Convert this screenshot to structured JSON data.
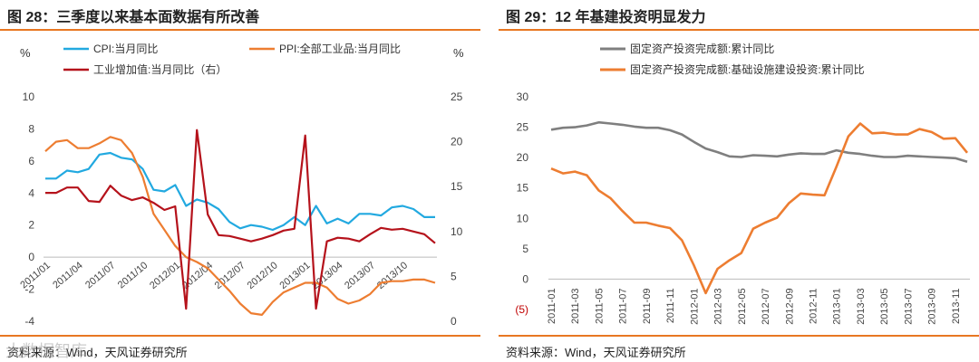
{
  "left": {
    "title": "图 28：三季度以来基本面数据有所改善",
    "source": "资料来源：Wind，天风证券研究所",
    "watermark": "大数据智库",
    "chart_data": {
      "type": "line",
      "left_axis_unit": "%",
      "right_axis_unit": "%",
      "left_ylim": [
        -4,
        10
      ],
      "right_ylim": [
        0,
        25
      ],
      "left_ticks": [
        "10",
        "8",
        "6",
        "4",
        "2",
        "0",
        "-2",
        "-4"
      ],
      "right_ticks": [
        "25",
        "20",
        "15",
        "10",
        "5",
        "0"
      ],
      "x_labels": [
        "2011/01",
        "2011/04",
        "2011/07",
        "2011/10",
        "2012/01",
        "2012/04",
        "2012/07",
        "2012/10",
        "2013/01",
        "2013/04",
        "2013/07",
        "2013/10"
      ],
      "series": [
        {
          "name": "CPI:当月同比",
          "axis": "left",
          "color": "#22a9e0",
          "values": [
            4.9,
            4.9,
            5.4,
            5.3,
            5.5,
            6.4,
            6.5,
            6.2,
            6.1,
            5.5,
            4.2,
            4.1,
            4.5,
            3.2,
            3.6,
            3.4,
            3.0,
            2.2,
            1.8,
            2.0,
            1.9,
            1.7,
            2.0,
            2.5,
            2.0,
            3.2,
            2.1,
            2.4,
            2.1,
            2.7,
            2.7,
            2.6,
            3.1,
            3.2,
            3.0,
            2.5,
            2.5
          ]
        },
        {
          "name": "PPI:全部工业品:当月同比",
          "axis": "left",
          "color": "#ed7d31",
          "values": [
            6.6,
            7.2,
            7.3,
            6.8,
            6.8,
            7.1,
            7.5,
            7.3,
            6.5,
            5.0,
            2.7,
            1.7,
            0.7,
            0.0,
            -0.3,
            -0.7,
            -1.4,
            -2.1,
            -2.9,
            -3.5,
            -3.6,
            -2.8,
            -2.2,
            -1.9,
            -1.6,
            -1.6,
            -1.9,
            -2.6,
            -2.9,
            -2.7,
            -2.3,
            -1.6,
            -1.5,
            -1.5,
            -1.4,
            -1.4,
            -1.6
          ]
        },
        {
          "name": "工业增加值:当月同比（右）",
          "axis": "right",
          "color": "#b5121b",
          "values": [
            14.3,
            14.3,
            14.9,
            14.9,
            13.4,
            13.3,
            15.1,
            14.0,
            13.5,
            13.8,
            13.2,
            12.4,
            12.8,
            1.4,
            21.3,
            11.9,
            9.6,
            9.5,
            9.2,
            8.9,
            9.2,
            9.6,
            10.1,
            10.3,
            20.7,
            1.4,
            8.9,
            9.3,
            9.2,
            8.9,
            9.7,
            10.4,
            10.2,
            10.3,
            10.0,
            9.7,
            8.7
          ]
        }
      ]
    }
  },
  "right": {
    "title": "图 29：12 年基建投资明显发力",
    "source": "资料来源：Wind，天风证券研究所",
    "chart_data": {
      "type": "line",
      "ylim": [
        -5,
        30
      ],
      "y_ticks": [
        "30",
        "25",
        "20",
        "15",
        "10",
        "5",
        "0",
        "(5)"
      ],
      "x_labels": [
        "2011-01",
        "2011-03",
        "2011-05",
        "2011-07",
        "2011-09",
        "2011-11",
        "2012-01",
        "2012-03",
        "2012-05",
        "2012-07",
        "2012-09",
        "2012-11",
        "2013-01",
        "2013-03",
        "2013-05",
        "2013-07",
        "2013-09",
        "2013-11"
      ],
      "series": [
        {
          "name": "固定资产投资完成额:累计同比",
          "color": "#7f7f7f",
          "values": [
            24.6,
            24.9,
            25.0,
            25.3,
            25.8,
            25.6,
            25.4,
            25.1,
            24.9,
            24.9,
            24.5,
            23.8,
            22.6,
            21.5,
            20.9,
            20.2,
            20.1,
            20.4,
            20.3,
            20.2,
            20.5,
            20.7,
            20.6,
            20.6,
            21.2,
            20.8,
            20.6,
            20.3,
            20.1,
            20.1,
            20.3,
            20.2,
            20.1,
            20.0,
            19.9,
            19.3
          ]
        },
        {
          "name": "固定资产投资完成额:基础设施建设投资:累计同比",
          "color": "#ed7d31",
          "values": [
            18.2,
            17.4,
            17.7,
            17.1,
            14.6,
            13.3,
            11.2,
            9.3,
            9.3,
            8.8,
            8.4,
            6.4,
            2.3,
            -2.3,
            1.7,
            3.1,
            4.3,
            8.3,
            9.3,
            10.1,
            12.5,
            14.1,
            13.9,
            13.8,
            18.5,
            23.5,
            25.6,
            24.0,
            24.1,
            23.8,
            23.8,
            24.7,
            24.2,
            23.1,
            23.2,
            20.8
          ]
        }
      ]
    }
  }
}
